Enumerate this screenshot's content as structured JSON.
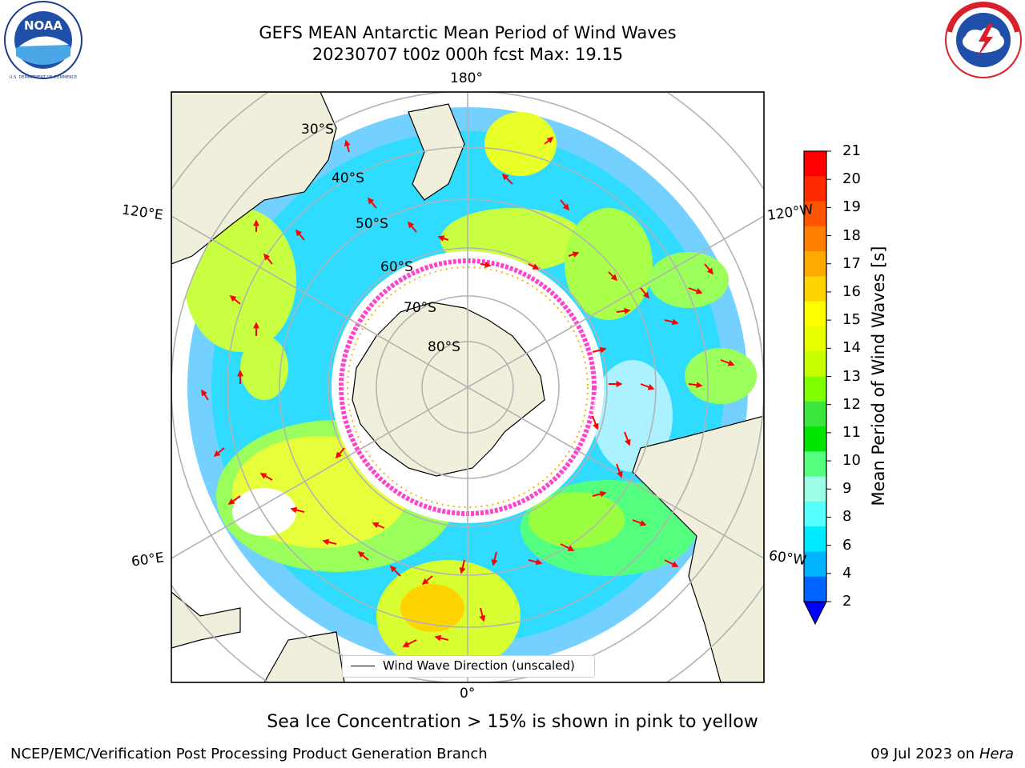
{
  "title": {
    "line1": "GEFS MEAN Antarctic Mean Period of Wind Waves",
    "line2": "20230707 t00z 000h fcst   Max: 19.15"
  },
  "map": {
    "projection": "south-polar-stereographic",
    "lon_labels": {
      "top": "180°",
      "bottom": "0°",
      "left_upper": "120°E",
      "left_lower": "60°E",
      "right_upper": "120°W",
      "right_lower": "60°W"
    },
    "lat_labels": [
      "30°S",
      "40°S",
      "50°S",
      "60°S",
      "70°S",
      "80°S"
    ],
    "legend_label": "Wind Wave Direction (unscaled)",
    "arrow_color": "#ff0000",
    "land_color": "#efefdb",
    "sea_ice_color": "#ff44cc"
  },
  "colorbar": {
    "label": "Mean Period of Wind Waves [s]",
    "ticks": [
      "21",
      "20",
      "19",
      "18",
      "17",
      "16",
      "15",
      "14",
      "13",
      "12",
      "11",
      "10",
      "9",
      "8",
      "6",
      "4",
      "2"
    ],
    "colors": [
      "#ff0000",
      "#ff2a00",
      "#ff5500",
      "#ff7f00",
      "#ffaa00",
      "#ffd400",
      "#ffff00",
      "#e8ff00",
      "#c8ff00",
      "#7fff00",
      "#3ce63c",
      "#00e600",
      "#54ff7f",
      "#9affe6",
      "#54ffff",
      "#00eaff",
      "#00b4ff",
      "#0064ff"
    ],
    "extend_color": "#0000ff"
  },
  "caption": "Sea Ice Concentration > 15% is shown in pink to yellow",
  "footer": {
    "left": "NCEP/EMC/Verification Post Processing Product Generation Branch",
    "right_date": "09 Jul 2023 on ",
    "right_host": "Hera"
  },
  "logos": {
    "left": "noaa-logo",
    "right": "nws-logo"
  }
}
